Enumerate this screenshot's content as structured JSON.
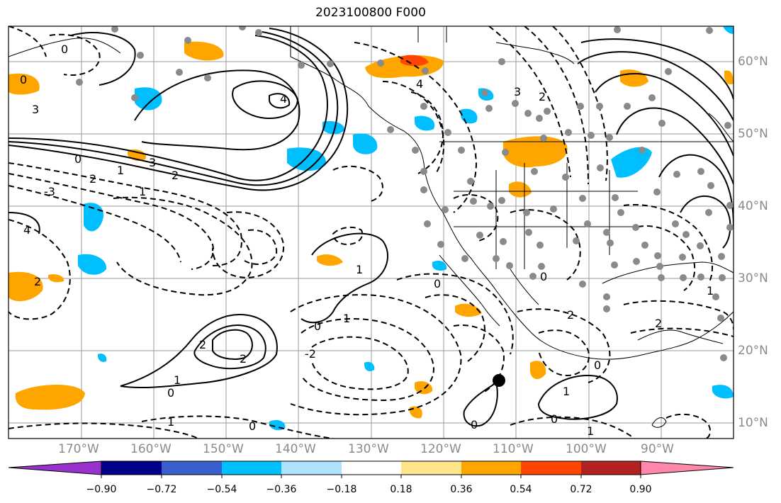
{
  "title": "2023100800 F000",
  "lon_labels": [
    "170°W",
    "160°W",
    "150°W",
    "140°W",
    "130°W",
    "120°W",
    "110°W",
    "100°W",
    "90°W"
  ],
  "lat_labels": [
    "60°N",
    "50°N",
    "40°N",
    "30°N",
    "20°N",
    "10°N"
  ],
  "colorbar": {
    "ticks": [
      "−0.90",
      "−0.72",
      "−0.54",
      "−0.36",
      "−0.18",
      "0.18",
      "0.36",
      "0.54",
      "0.72",
      "0.90"
    ],
    "colors": [
      "#9932cc",
      "#00008b",
      "#3a5fcd",
      "#00bfff",
      "#b0e2ff",
      "#ffffff",
      "#fce58b",
      "#ffa500",
      "#ff4500",
      "#b22222",
      "#ff88aa"
    ]
  },
  "contour_labels": [
    "0",
    "3",
    "4",
    "3",
    "2",
    "0",
    "-3",
    "2",
    "1",
    "4",
    "2",
    "1",
    "2",
    "1",
    "0",
    "2",
    "0",
    "1",
    "-2",
    "0",
    "1",
    "0",
    "4",
    "3",
    "2",
    "1",
    "0",
    "1",
    "2",
    "0",
    "2",
    "0",
    "1",
    "0",
    "1",
    "0"
  ]
}
